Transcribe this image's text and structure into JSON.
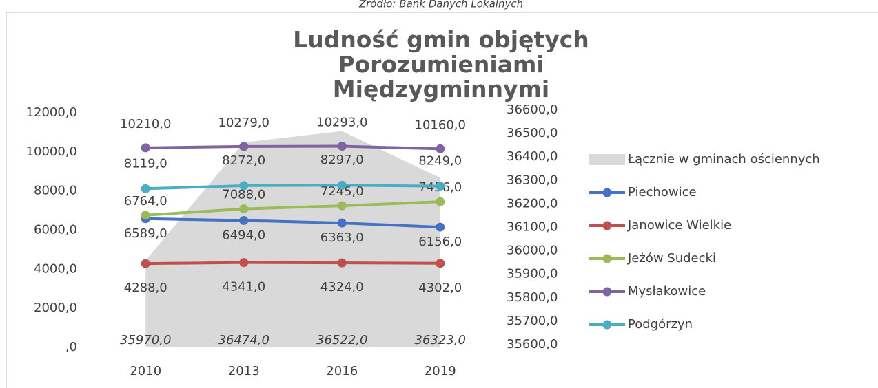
{
  "chart_data": {
    "type": "line",
    "source": "Źródło: Bank Danych Lokalnych",
    "title": "Ludność gmin objętych Porozumieniami Międzygminnymi",
    "categories": [
      "2010",
      "2013",
      "2016",
      "2019"
    ],
    "ylim": [
      0,
      12000
    ],
    "yticks": [
      {
        "value": 0,
        "label": ",0"
      },
      {
        "value": 2000,
        "label": "2000,0"
      },
      {
        "value": 4000,
        "label": "4000,0"
      },
      {
        "value": 6000,
        "label": "6000,0"
      },
      {
        "value": 8000,
        "label": "8000,0"
      },
      {
        "value": 10000,
        "label": "10000,0"
      },
      {
        "value": 12000,
        "label": "12000,0"
      }
    ],
    "y2lim": [
      35600,
      36600
    ],
    "y2ticks": [
      {
        "value": 35600,
        "label": "35600,0"
      },
      {
        "value": 35700,
        "label": "35700,0"
      },
      {
        "value": 35800,
        "label": "35800,0"
      },
      {
        "value": 35900,
        "label": "35900,0"
      },
      {
        "value": 36000,
        "label": "36000,0"
      },
      {
        "value": 36100,
        "label": "36100,0"
      },
      {
        "value": 36200,
        "label": "36200,0"
      },
      {
        "value": 36300,
        "label": "36300,0"
      },
      {
        "value": 36400,
        "label": "36400,0"
      },
      {
        "value": 36500,
        "label": "36500,0"
      },
      {
        "value": 36600,
        "label": "36600,0"
      }
    ],
    "legend": "right",
    "series": [
      {
        "name": "Łącznie w gminach ościennych",
        "type": "area",
        "axis": "y2",
        "color": "#d9d9d9",
        "values": [
          35970,
          36474,
          36522,
          36323
        ],
        "value_labels": [
          "35970,0",
          "36474,0",
          "36522,0",
          "36323,0"
        ]
      },
      {
        "name": "Piechowice",
        "color": "#4472c4",
        "values": [
          6589,
          6494,
          6363,
          6156
        ],
        "value_labels": [
          "6589,0",
          "6494,0",
          "6363,0",
          "6156,0"
        ]
      },
      {
        "name": "Janowice Wielkie",
        "color": "#c0504d",
        "values": [
          4288,
          4341,
          4324,
          4302
        ],
        "value_labels": [
          "4288,0",
          "4341,0",
          "4324,0",
          "4302,0"
        ]
      },
      {
        "name": "Jeżów Sudecki",
        "color": "#9bbb59",
        "values": [
          6764,
          7088,
          7245,
          7456
        ],
        "value_labels": [
          "6764,0",
          "7088,0",
          "7245,0",
          "7456,0"
        ]
      },
      {
        "name": "Mysłakowice",
        "color": "#8064a2",
        "values": [
          10210,
          10279,
          10293,
          10160
        ],
        "value_labels": [
          "10210,0",
          "10279,0",
          "10293,0",
          "10160,0"
        ]
      },
      {
        "name": "Podgórzyn",
        "color": "#4bacc6",
        "values": [
          8119,
          8272,
          8297,
          8249
        ],
        "value_labels": [
          "8119,0",
          "8272,0",
          "8297,0",
          "8249,0"
        ]
      }
    ]
  }
}
